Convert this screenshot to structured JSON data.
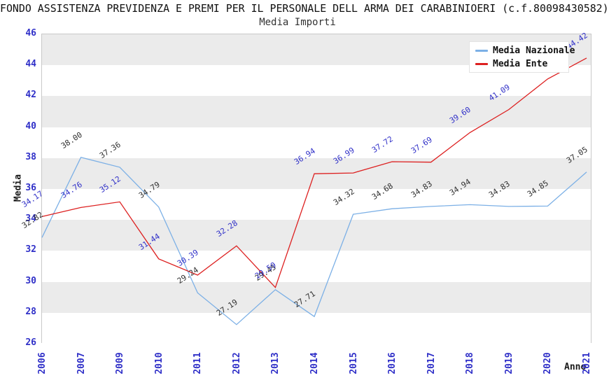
{
  "title": "FONDO ASSISTENZA PREVIDENZA E PREMI PER IL PERSONALE DELL ARMA DEI CARABINIOERI (c.f.80098430582)",
  "subtitle": "Media Importi",
  "axes": {
    "y_label": "Media",
    "x_label": "Anno",
    "y_ticks": [
      46,
      44,
      42,
      40,
      38,
      36,
      34,
      32,
      30,
      28,
      26
    ],
    "tick_color": "#3030c8"
  },
  "legend": {
    "items": [
      {
        "label": "Media Nazionale",
        "color": "#7cb0e6"
      },
      {
        "label": "Media Ente",
        "color": "#dd2020"
      }
    ]
  },
  "chart_data": {
    "type": "line",
    "title": "Media Importi",
    "xlabel": "Anno",
    "ylabel": "Media",
    "ylim": [
      26,
      46
    ],
    "grid": "alternating-horizontal-bands",
    "band_colors": [
      "#ebebeb",
      "#ffffff"
    ],
    "legend_position": "top-right",
    "categories": [
      "2006",
      "2007",
      "2009",
      "2010",
      "2011",
      "2012",
      "2013",
      "2014",
      "2015",
      "2016",
      "2017",
      "2018",
      "2019",
      "2020",
      "2021"
    ],
    "series": [
      {
        "name": "Media Nazionale",
        "color": "#7cb0e6",
        "label_color": "#303030",
        "values": [
          32.82,
          38.0,
          37.36,
          34.79,
          29.24,
          27.19,
          29.45,
          27.71,
          34.32,
          34.68,
          34.83,
          34.94,
          34.83,
          34.85,
          37.05
        ]
      },
      {
        "name": "Media Ente",
        "color": "#dd2020",
        "label_color": "#3030c8",
        "values": [
          34.17,
          34.76,
          35.12,
          31.44,
          30.39,
          32.28,
          29.59,
          36.94,
          36.99,
          37.72,
          37.69,
          39.6,
          41.09,
          43.07,
          44.42
        ]
      }
    ]
  }
}
